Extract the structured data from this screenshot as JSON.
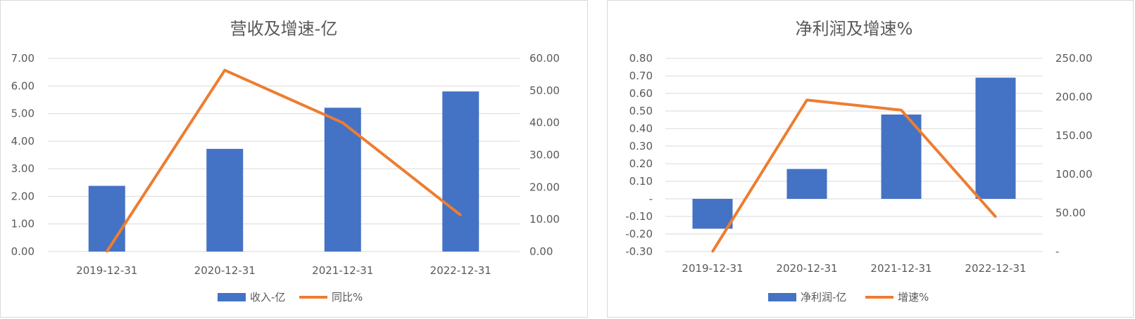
{
  "chart_data": [
    {
      "type": "bar",
      "title": "营收及增速-亿",
      "categories": [
        "2019-12-31",
        "2020-12-31",
        "2021-12-31",
        "2022-12-31"
      ],
      "series": [
        {
          "name": "收入-亿",
          "type": "bar",
          "axis": "left",
          "color": "#4472C4",
          "values": [
            2.38,
            3.72,
            5.21,
            5.8
          ]
        },
        {
          "name": "同比%",
          "type": "line",
          "axis": "right",
          "color": "#ED7D31",
          "values": [
            0.0,
            56.3,
            40.0,
            11.3
          ]
        }
      ],
      "y_left": {
        "min": 0,
        "max": 7,
        "step": 1,
        "ticks": [
          "0.00",
          "1.00",
          "2.00",
          "3.00",
          "4.00",
          "5.00",
          "6.00",
          "7.00"
        ]
      },
      "y_right": {
        "min": 0,
        "max": 60,
        "step": 10,
        "ticks": [
          "0.00",
          "10.00",
          "20.00",
          "30.00",
          "40.00",
          "50.00",
          "60.00"
        ]
      },
      "grid": true,
      "legend": "bottom"
    },
    {
      "type": "bar",
      "title": "净利润及增速%",
      "categories": [
        "2019-12-31",
        "2020-12-31",
        "2021-12-31",
        "2022-12-31"
      ],
      "series": [
        {
          "name": "净利润-亿",
          "type": "bar",
          "axis": "left",
          "color": "#4472C4",
          "values": [
            -0.17,
            0.17,
            0.48,
            0.69
          ]
        },
        {
          "name": "增速%",
          "type": "line",
          "axis": "right",
          "color": "#ED7D31",
          "values": [
            0.0,
            196.0,
            183.0,
            45.0
          ]
        }
      ],
      "y_left": {
        "min": -0.3,
        "max": 0.8,
        "step": 0.1,
        "ticks": [
          "-0.30",
          "-0.20",
          "-0.10",
          "-",
          "0.10",
          "0.20",
          "0.30",
          "0.40",
          "0.50",
          "0.60",
          "0.70",
          "0.80"
        ]
      },
      "y_right": {
        "min": 0,
        "max": 250,
        "step": 50,
        "ticks": [
          "-",
          "50.00",
          "100.00",
          "150.00",
          "200.00",
          "250.00"
        ]
      },
      "grid": true,
      "legend": "bottom"
    }
  ]
}
